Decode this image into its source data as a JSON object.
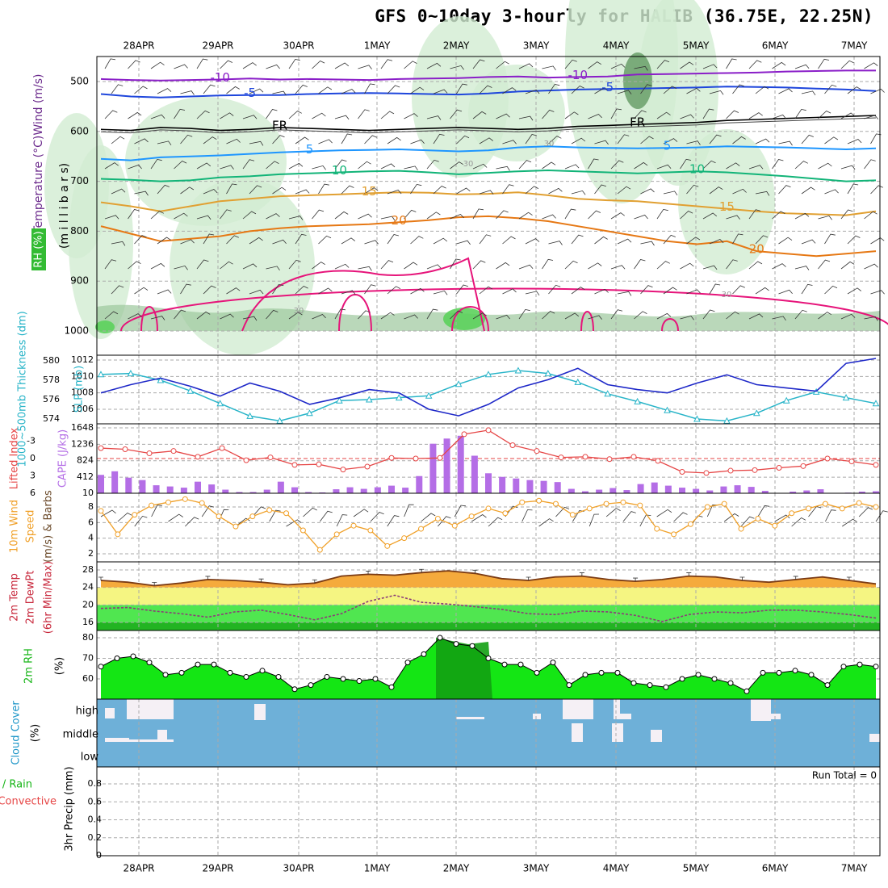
{
  "title": "GFS 0~10day 3-hourly for HALIB (36.75E, 22.25N)",
  "colors": {
    "temp_m10": "#8a1ec8",
    "temp_m5": "#1e46dc",
    "temp_fr": "#000000",
    "temp_5": "#1e96ff",
    "temp_10": "#12b478",
    "temp_15": "#e1a032",
    "temp_20": "#e67814",
    "temp_25": "#e6147a",
    "rh_light": "#d2ecd2",
    "rh_mid": "#9cc79c",
    "rh_dark": "#6fa36f",
    "slp": "#1e28c8",
    "thickness": "#28b4c8",
    "lifted": "#e64646",
    "cape": "#b46ee6",
    "wind": "#f0a028",
    "dewpt": "#8c3c78",
    "temp2m": "#f5aa3c",
    "rh2m": "#14e614",
    "cloud": "#6eb0d8"
  },
  "chart_data": {
    "type": "meteogram",
    "run_total": "Run Total = 0",
    "date_labels": [
      "28APR",
      "29APR",
      "30APR",
      "1MAY",
      "2MAY",
      "3MAY",
      "4MAY",
      "5MAY",
      "6MAY",
      "7MAY"
    ],
    "upper": {
      "ylabels": [
        "Temperature (°C)Wind (m/s)",
        "(m i l l i b a r s)",
        "RH (%)"
      ],
      "levels": [
        500,
        600,
        700,
        800,
        900,
        1000
      ],
      "isotherms": [
        {
          "label": "-10",
          "color": "#8a1ec8",
          "p": [
            495,
            497,
            498,
            497,
            496,
            494,
            496,
            495,
            496,
            497,
            495,
            494,
            493,
            491,
            490,
            492,
            491,
            490,
            486,
            485,
            484,
            483,
            482,
            480,
            479,
            478,
            478
          ]
        },
        {
          "label": "-5",
          "color": "#1e46dc",
          "p": [
            525,
            530,
            532,
            530,
            528,
            527,
            527,
            525,
            524,
            523,
            524,
            525,
            526,
            524,
            520,
            518,
            516,
            515,
            514,
            513,
            512,
            510,
            511,
            512,
            514,
            516,
            519
          ]
        },
        {
          "label": "FR",
          "color": "#000000",
          "p": [
            596,
            598,
            592,
            594,
            598,
            596,
            592,
            594,
            596,
            598,
            596,
            594,
            592,
            594,
            596,
            594,
            590,
            588,
            586,
            584,
            582,
            578,
            576,
            574,
            572,
            570,
            568
          ]
        },
        {
          "label": "5",
          "color": "#1e96ff",
          "p": [
            655,
            658,
            652,
            650,
            648,
            645,
            642,
            640,
            638,
            637,
            636,
            638,
            640,
            638,
            632,
            630,
            632,
            633,
            634,
            633,
            632,
            630,
            631,
            632,
            634,
            636,
            634
          ]
        },
        {
          "label": "10",
          "color": "#12b478",
          "p": [
            695,
            697,
            700,
            698,
            692,
            690,
            686,
            684,
            682,
            680,
            679,
            682,
            686,
            683,
            680,
            678,
            680,
            682,
            684,
            682,
            680,
            682,
            686,
            690,
            695,
            700,
            698
          ]
        },
        {
          "label": "15",
          "color": "#e1a032",
          "p": [
            742,
            750,
            760,
            750,
            740,
            735,
            730,
            728,
            726,
            724,
            722,
            723,
            726,
            725,
            722,
            728,
            735,
            738,
            740,
            745,
            750,
            755,
            760,
            764,
            766,
            768,
            760
          ]
        },
        {
          "label": "20",
          "color": "#e67814",
          "p": [
            790,
            805,
            820,
            815,
            810,
            800,
            794,
            790,
            788,
            786,
            782,
            778,
            772,
            770,
            774,
            780,
            790,
            800,
            810,
            820,
            826,
            820,
            840,
            845,
            850,
            845,
            840
          ]
        }
      ],
      "contour_labels": [
        "30"
      ]
    },
    "slp_thickness": {
      "ylabel_left": "1000~500mb Thickness (dm)",
      "ylabel_right": "SLP (mb)",
      "thickness_ticks": [
        574,
        576,
        578,
        580
      ],
      "slp_ticks": [
        1006,
        1008,
        1010,
        1012
      ],
      "thickness": [
        578.6,
        578.7,
        578.0,
        576.9,
        575.6,
        574.3,
        573.8,
        574.6,
        575.9,
        576.0,
        576.2,
        576.4,
        577.6,
        578.6,
        579.0,
        578.7,
        577.8,
        576.6,
        575.8,
        574.9,
        574.0,
        573.8,
        574.6,
        575.9,
        576.8,
        576.2,
        575.6
      ],
      "slp": [
        1008.0,
        1009.0,
        1009.8,
        1008.8,
        1007.6,
        1009.2,
        1008.2,
        1006.6,
        1007.4,
        1008.4,
        1008.0,
        1006.0,
        1005.2,
        1006.6,
        1008.6,
        1009.6,
        1011.0,
        1009.0,
        1008.4,
        1008.0,
        1009.2,
        1010.2,
        1009.0,
        1008.6,
        1008.2,
        1011.6,
        1012.2
      ]
    },
    "cape_lifted": {
      "ylabel_left": "Lifted Index",
      "ylabel_right": "CAPE (J/kg)",
      "lifted_ticks": [
        -3,
        0,
        3,
        6
      ],
      "cape_ticks": [
        10,
        412,
        824,
        1236,
        1648
      ],
      "lifted": [
        -1.8,
        -1.6,
        -0.9,
        -1.3,
        -0.3,
        -1.8,
        0.3,
        -0.2,
        1.1,
        1.0,
        1.9,
        1.4,
        -0.1,
        0.0,
        -0.1,
        -4.2,
        -4.9,
        -2.3,
        -1.3,
        -0.2,
        -0.3,
        0.1,
        -0.3,
        0.4,
        2.3,
        2.5,
        2.1,
        2.0,
        1.6,
        1.3,
        0.0,
        0.5,
        1.1
      ],
      "cape": [
        470,
        560,
        400,
        340,
        210,
        180,
        150,
        300,
        230,
        100,
        40,
        40,
        100,
        300,
        160,
        40,
        30,
        110,
        160,
        120,
        160,
        200,
        150,
        440,
        1250,
        1380,
        1450,
        950,
        510,
        420,
        380,
        340,
        320,
        290,
        120,
        60,
        100,
        140,
        90,
        240,
        280,
        200,
        150,
        120,
        80,
        180,
        210,
        170,
        70,
        20,
        50,
        80,
        110,
        20,
        25,
        50,
        60
      ]
    },
    "wind10m": {
      "ylabel": [
        "10m Wind",
        "Speed",
        "(m/s) & Barbs"
      ],
      "ticks": [
        2,
        4,
        6,
        8
      ],
      "speed": [
        7.5,
        4.5,
        7.0,
        8.2,
        8.6,
        9.0,
        8.5,
        6.8,
        5.5,
        6.8,
        7.6,
        7.2,
        5.0,
        2.5,
        4.5,
        5.6,
        5.0,
        3.0,
        4.0,
        5.2,
        6.5,
        5.6,
        6.8,
        7.8,
        7.2,
        8.6,
        8.8,
        8.4,
        7.0,
        7.8,
        8.4,
        8.6,
        8.2,
        5.2,
        4.5,
        5.8,
        8.0,
        8.4,
        5.2,
        6.5,
        5.6,
        7.2,
        7.8,
        8.4,
        7.8,
        8.5,
        8.0
      ]
    },
    "temp2m": {
      "ylabel": [
        "2m Temp",
        "2m DewPt",
        "(6hr Min/Max)"
      ],
      "ticks": [
        16,
        20,
        24,
        28
      ],
      "temp": [
        25.6,
        25.2,
        24.4,
        25.0,
        25.8,
        25.6,
        25.2,
        24.6,
        25.0,
        26.6,
        27.0,
        26.8,
        27.4,
        27.8,
        27.2,
        26.0,
        25.6,
        26.4,
        26.6,
        25.8,
        25.4,
        25.8,
        26.6,
        26.4,
        25.6,
        25.2,
        25.8,
        26.4,
        25.6,
        24.8
      ],
      "dewpt": [
        19.2,
        19.4,
        18.6,
        18.0,
        17.2,
        18.4,
        18.8,
        17.8,
        16.6,
        18.0,
        20.8,
        22.2,
        20.6,
        20.2,
        19.6,
        19.0,
        18.0,
        17.8,
        18.6,
        18.4,
        17.6,
        16.2,
        17.8,
        18.4,
        18.2,
        18.8,
        18.8,
        18.4,
        17.8,
        17.0
      ]
    },
    "rh2m": {
      "ylabel": [
        "2m RH",
        "(%)"
      ],
      "ticks": [
        60,
        70,
        80
      ],
      "rh": [
        66,
        70,
        71,
        68,
        62,
        63,
        67,
        67,
        63,
        61,
        64,
        61,
        55,
        57,
        61,
        60,
        59,
        60,
        56,
        68,
        72,
        80,
        77,
        76,
        70,
        67,
        67,
        63,
        68,
        57,
        62,
        63,
        63,
        58,
        57,
        56,
        60,
        62,
        60,
        58,
        54,
        63,
        63,
        64,
        62,
        57,
        66,
        67,
        66
      ]
    },
    "cloud": {
      "ylabel": [
        "Cloud Cover",
        "(%)"
      ],
      "levels": [
        "high",
        "middle",
        "low"
      ]
    },
    "precip": {
      "ylabel_left": [
        "Total / Rain",
        "Convective"
      ],
      "ylabel_right": "3hr Precip (mm)",
      "ticks": [
        "0",
        "0.2",
        "0.4",
        "0.6",
        "0.8"
      ],
      "values": []
    }
  }
}
